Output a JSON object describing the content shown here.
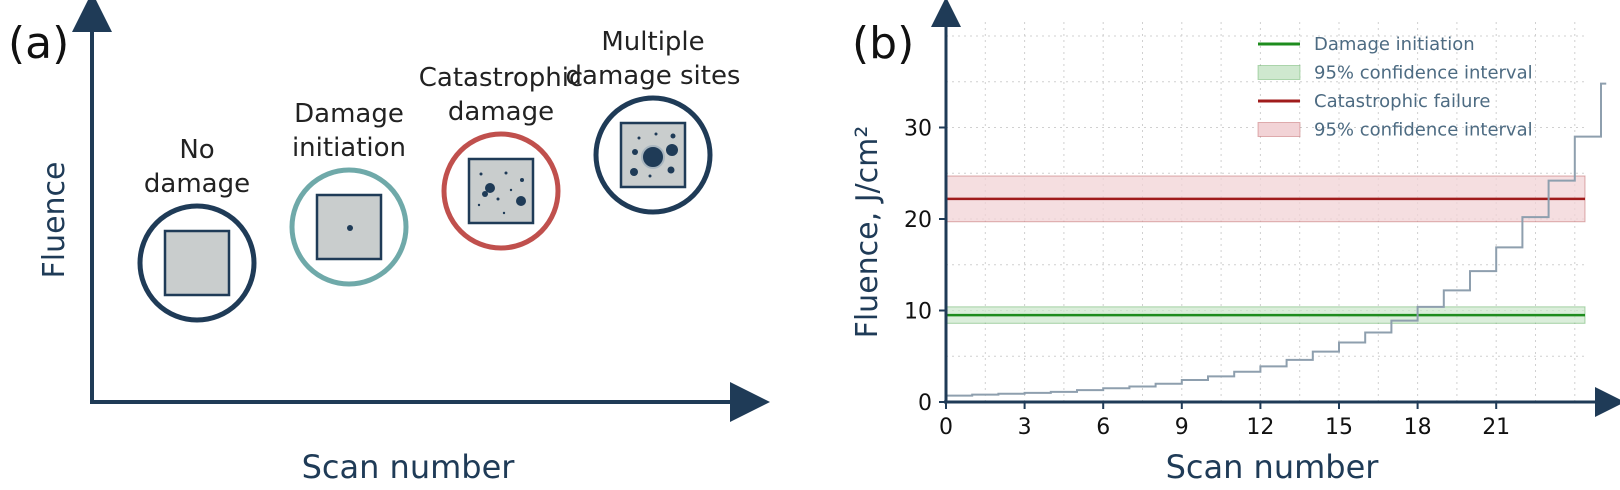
{
  "colors": {
    "axis": "#1f3b57",
    "grid": "#d0d0d0",
    "stage_no_damage": "#1f3b57",
    "stage_initiation": "#6fa9a9",
    "stage_catastrophic": "#c0504d",
    "stage_multiple": "#1f3b57",
    "sample_fill": "#c9cdcd",
    "damage_dot": "#1f3b57",
    "green_line": "#1e8c1e",
    "green_band": "#cfe8cf",
    "red_line": "#a01c1c",
    "red_band": "#f2d3d6",
    "step_line": "#8e9fae",
    "legend_text": "#4d6b82"
  },
  "panel_a": {
    "label": "(a)",
    "xlabel": "Scan number",
    "ylabel": "Fluence",
    "stages": [
      {
        "name": "stage-no-damage",
        "label": [
          "No",
          "damage"
        ],
        "level": 1,
        "damage": "none"
      },
      {
        "name": "stage-damage-initiation",
        "label": [
          "Damage",
          "initiation"
        ],
        "level": 2,
        "damage": "single"
      },
      {
        "name": "stage-catastrophic-damage",
        "label": [
          "Catastrophic",
          "damage"
        ],
        "level": 3,
        "damage": "scattered"
      },
      {
        "name": "stage-multiple-damage-sites",
        "label": [
          "Multiple",
          "damage sites"
        ],
        "level": 4,
        "damage": "multiple"
      }
    ]
  },
  "chart_data": {
    "type": "line",
    "label": "(b)",
    "xlabel": "Scan number",
    "ylabel": "Fluence, J/cm²",
    "xlim": [
      0,
      24.5
    ],
    "ylim": [
      0,
      35
    ],
    "xticks": [
      0,
      3,
      6,
      9,
      12,
      15,
      18,
      21
    ],
    "yticks": [
      0,
      10,
      20,
      30
    ],
    "grid": true,
    "legend_position": "top-right",
    "horizontal_lines": [
      {
        "name": "Damage initiation",
        "y": 9.5,
        "band": [
          8.6,
          10.4
        ],
        "band_name": "95% confidence interval",
        "color": "green"
      },
      {
        "name": "Catastrophic failure",
        "y": 22.2,
        "band": [
          19.7,
          24.7
        ],
        "band_name": "95% confidence interval",
        "color": "red"
      }
    ],
    "series": [
      {
        "x": [
          0,
          1,
          2,
          3,
          4,
          5,
          6,
          7,
          8,
          9,
          10,
          11,
          12,
          13,
          14,
          15,
          16,
          17,
          18,
          19,
          20,
          21,
          22,
          23,
          24
        ],
        "values": [
          0.7,
          0.8,
          0.9,
          1.0,
          1.1,
          1.3,
          1.5,
          1.7,
          2.0,
          2.4,
          2.8,
          3.3,
          3.9,
          4.6,
          5.5,
          6.5,
          7.6,
          8.9,
          10.4,
          12.2,
          14.3,
          16.9,
          20.2,
          24.2,
          29.0
        ]
      }
    ],
    "step_end": {
      "x": 25.2,
      "y": 34.8
    }
  }
}
